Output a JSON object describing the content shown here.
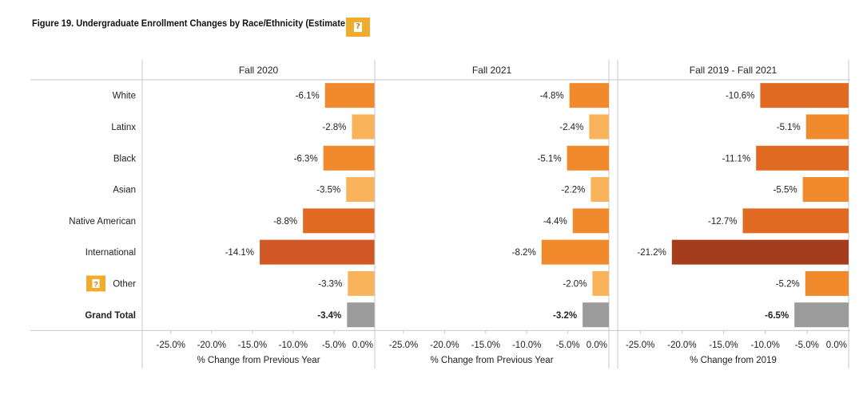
{
  "title": "Figure 19. Undergraduate Enrollment Changes by Race/Ethnicity (Estimate",
  "help_icon_glyph": "?",
  "colors": {
    "light": "#f9b35b",
    "medium": "#f08a2c",
    "dark": "#e16a23",
    "darker": "#cf5826",
    "darkest": "#a43c1e",
    "total": "#9b9b9b",
    "badge": "#f0ac2c"
  },
  "chart_data": {
    "type": "bar",
    "orientation": "horizontal",
    "categories": [
      "White",
      "Latinx",
      "Black",
      "Asian",
      "Native American",
      "International",
      "Other",
      "Grand Total"
    ],
    "category_bold": [
      false,
      false,
      false,
      false,
      false,
      false,
      false,
      true
    ],
    "category_help_icon": [
      false,
      false,
      false,
      false,
      false,
      false,
      true,
      false
    ],
    "panels": [
      {
        "name": "Fall 2020",
        "values": [
          -6.1,
          -2.8,
          -6.3,
          -3.5,
          -8.8,
          -14.1,
          -3.3,
          -3.4
        ],
        "labels": [
          "-6.1%",
          "-2.8%",
          "-6.3%",
          "-3.5%",
          "-8.8%",
          "-14.1%",
          "-3.3%",
          "-3.4%"
        ],
        "xlim": [
          -28.5,
          0
        ],
        "ticks": [
          "-25.0%",
          "-20.0%",
          "-15.0%",
          "-10.0%",
          "-5.0%",
          "0.0%"
        ],
        "tick_values": [
          -25,
          -20,
          -15,
          -10,
          -5,
          0
        ],
        "xlabel": "% Change from Previous Year"
      },
      {
        "name": "Fall 2021",
        "values": [
          -4.8,
          -2.4,
          -5.1,
          -2.2,
          -4.4,
          -8.2,
          -2.0,
          -3.2
        ],
        "labels": [
          "-4.8%",
          "-2.4%",
          "-5.1%",
          "-2.2%",
          "-4.4%",
          "-8.2%",
          "-2.0%",
          "-3.2%"
        ],
        "xlim": [
          -28.5,
          0
        ],
        "ticks": [
          "-25.0%",
          "-20.0%",
          "-15.0%",
          "-10.0%",
          "-5.0%",
          "0.0%"
        ],
        "tick_values": [
          -25,
          -20,
          -15,
          -10,
          -5,
          0
        ],
        "xlabel": "% Change from Previous Year"
      },
      {
        "name": "Fall 2019 - Fall 2021",
        "values": [
          -10.6,
          -5.1,
          -11.1,
          -5.5,
          -12.7,
          -21.2,
          -5.2,
          -6.5
        ],
        "labels": [
          "-10.6%",
          "-5.1%",
          "-11.1%",
          "-5.5%",
          "-12.7%",
          "-21.2%",
          "-5.2%",
          "-6.5%"
        ],
        "xlim": [
          -27.7,
          0
        ],
        "ticks": [
          "-25.0%",
          "-20.0%",
          "-15.0%",
          "-10.0%",
          "-5.0%",
          "0.0%"
        ],
        "tick_values": [
          -25,
          -20,
          -15,
          -10,
          -5,
          0
        ],
        "xlabel": "% Change from 2019"
      }
    ]
  }
}
